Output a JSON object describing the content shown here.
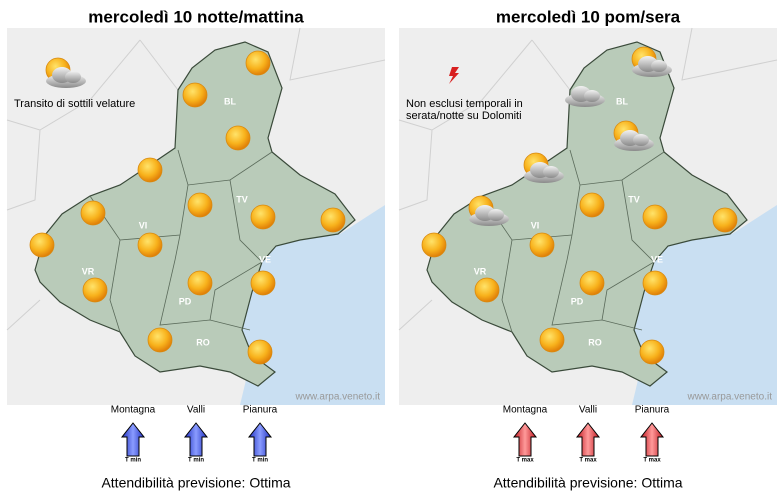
{
  "panels": [
    {
      "title": "mercoledì 10 notte/mattina",
      "note": [
        "Transito di sottili velature"
      ],
      "provinces": [
        "BL",
        "TV",
        "VI",
        "VR",
        "PD",
        "VE",
        "RO"
      ],
      "credit": "www.arpa.veneto.it",
      "zones": [
        {
          "name": "Montagna",
          "label": "T min"
        },
        {
          "name": "Valli",
          "label": "T min"
        },
        {
          "name": "Pianura",
          "label": "T min"
        }
      ],
      "footer": "Attendibilità previsione: Ottima"
    },
    {
      "title": "mercoledì 10 pom/sera",
      "note": [
        "Non esclusi temporali in",
        "serata/notte su Dolomiti"
      ],
      "provinces": [
        "BL",
        "TV",
        "VI",
        "VR",
        "PD",
        "VE",
        "RO"
      ],
      "credit": "www.arpa.veneto.it",
      "zones": [
        {
          "name": "Montagna",
          "label": "T max"
        },
        {
          "name": "Valli",
          "label": "T max"
        },
        {
          "name": "Pianura",
          "label": "T max"
        }
      ],
      "footer": "Attendibilità previsione: Ottima"
    }
  ]
}
